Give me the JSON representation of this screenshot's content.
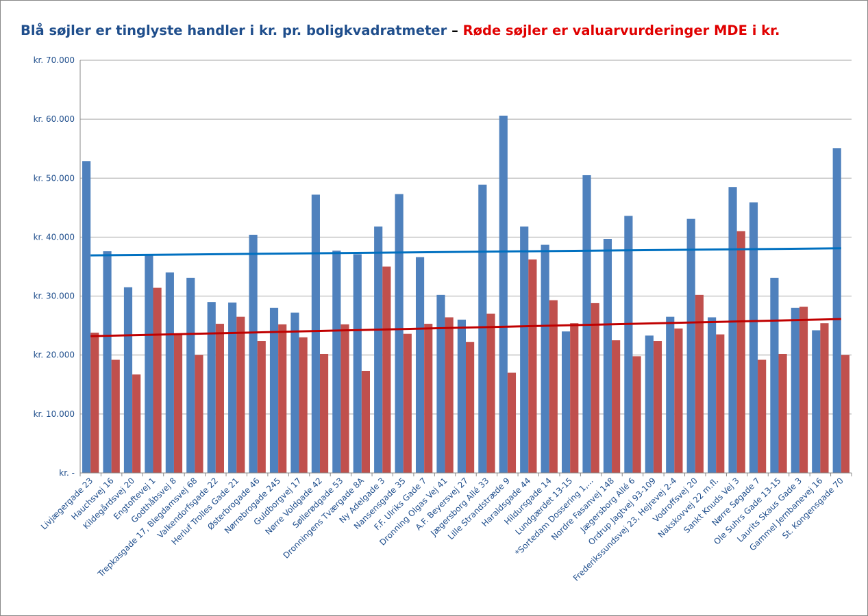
{
  "chart_data": {
    "type": "bar",
    "title": "Blå søjler er tinglyste handler i kr. pr. boligkvadratmeter",
    "title_separator": "–",
    "subtitle": "Røde søjler er valuarvurderinger MDE i kr.",
    "title_color": "#1f4e8c",
    "subtitle_color": "#e00000",
    "categories": [
      "Livjægergade 23",
      "Hauchsvej 16",
      "Kildegårdsvej 20",
      "Engtoftevej 1",
      "Godthåbsvej 8",
      "Trepkasgade 17, Blegdamsvej 68",
      "Valkendorfsgade 22",
      "Herluf Trolles Gade 21",
      "Østerbrogade 46",
      "Nørrebrogade 245",
      "Guldborgvej 17",
      "Nørre Voldgade 42",
      "Søllerødgade 53",
      "Dronningens Tværgade 8A",
      "Ny Adelgade 3",
      "Nansensgade 35",
      "F.F. Ulriks Gade 7",
      "Dronning Olgas Vej 41",
      "A.F. Beyersvej 27",
      "Jægersborg Allé 33",
      "Lille Strandstræde 9",
      "Haraldsgade 44",
      "Hildursgade 14",
      "Lundgærdet 13-15",
      "*Sortedam Dossering 1,...",
      "Nordre Fasanvej 148",
      "Jægersborg Allé 6",
      "Ordrup Jagtvej 93-109",
      "Frederikssundsvej 23, Hejrevej 2-4",
      "Vodroffsvej 20",
      "Nakskovvej 22 m.fl.",
      "Sankt Knuds Vej 3",
      "Nørre Søgade 7",
      "Ole Suhrs Gade 13-15",
      "Laurits Skaus Gade 3",
      "Gammel Jernbanevej 16",
      "St. Kongensgade 70"
    ],
    "series": [
      {
        "color": "#4f81bd",
        "values": [
          52900,
          37600,
          31500,
          37000,
          34000,
          33100,
          29000,
          28900,
          40400,
          28000,
          27200,
          47200,
          37700,
          37100,
          41800,
          47300,
          36600,
          30200,
          26000,
          48900,
          60600,
          41800,
          38700,
          24000,
          50500,
          39700,
          43600,
          23300,
          26500,
          43100,
          26400,
          48500,
          45900,
          33100,
          28000,
          24200,
          55100
        ]
      },
      {
        "color": "#c0504d",
        "values": [
          23800,
          19200,
          16700,
          31400,
          23500,
          20000,
          25300,
          26500,
          22400,
          25200,
          23000,
          20200,
          25200,
          17300,
          35000,
          23600,
          25300,
          26400,
          22200,
          27000,
          17000,
          36200,
          29300,
          25400,
          28800,
          22500,
          19800,
          22400,
          24500,
          30200,
          23500,
          41000,
          19200,
          20200,
          28200,
          25400,
          20000
        ]
      }
    ],
    "trendlines": [
      {
        "color": "#0070c0",
        "values": [
          36900,
          38100
        ]
      },
      {
        "color": "#c00000",
        "values": [
          23200,
          26100
        ]
      }
    ],
    "ylim": [
      0,
      70000
    ],
    "yticks": [
      {
        "value": 0,
        "label": "kr. -"
      },
      {
        "value": 10000,
        "label": "kr. 10.000"
      },
      {
        "value": 20000,
        "label": "kr. 20.000"
      },
      {
        "value": 30000,
        "label": "kr. 30.000"
      },
      {
        "value": 40000,
        "label": "kr. 40.000"
      },
      {
        "value": 50000,
        "label": "kr. 50.000"
      },
      {
        "value": 60000,
        "label": "kr. 60.000"
      },
      {
        "value": 70000,
        "label": "kr. 70.000"
      }
    ],
    "grid": true
  }
}
